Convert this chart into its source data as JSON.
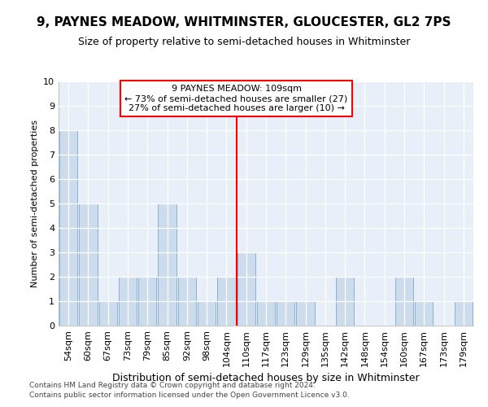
{
  "title": "9, PAYNES MEADOW, WHITMINSTER, GLOUCESTER, GL2 7PS",
  "subtitle": "Size of property relative to semi-detached houses in Whitminster",
  "xlabel": "Distribution of semi-detached houses by size in Whitminster",
  "ylabel": "Number of semi-detached properties",
  "footnote1": "Contains HM Land Registry data © Crown copyright and database right 2024.",
  "footnote2": "Contains public sector information licensed under the Open Government Licence v3.0.",
  "categories": [
    "54sqm",
    "60sqm",
    "67sqm",
    "73sqm",
    "79sqm",
    "85sqm",
    "92sqm",
    "98sqm",
    "104sqm",
    "110sqm",
    "117sqm",
    "123sqm",
    "129sqm",
    "135sqm",
    "142sqm",
    "148sqm",
    "154sqm",
    "160sqm",
    "167sqm",
    "173sqm",
    "179sqm"
  ],
  "values": [
    8,
    5,
    1,
    2,
    2,
    5,
    2,
    1,
    2,
    3,
    1,
    1,
    1,
    0,
    2,
    0,
    0,
    2,
    1,
    0,
    1
  ],
  "bar_color": "#ccdcec",
  "bar_edge_color": "#7aaad0",
  "bar_linewidth": 0.6,
  "vline_color": "red",
  "annotation_line1": "9 PAYNES MEADOW: 109sqm",
  "annotation_line2": "← 73% of semi-detached houses are smaller (27)",
  "annotation_line3": "27% of semi-detached houses are larger (10) →",
  "annotation_box_color": "white",
  "annotation_box_edgecolor": "red",
  "ylim": [
    0,
    10
  ],
  "yticks": [
    0,
    1,
    2,
    3,
    4,
    5,
    6,
    7,
    8,
    9,
    10
  ],
  "background_color": "#e8eff8",
  "grid_color": "white",
  "title_fontsize": 11,
  "subtitle_fontsize": 9,
  "xlabel_fontsize": 9,
  "ylabel_fontsize": 8,
  "tick_fontsize": 8,
  "footnote_fontsize": 6.5,
  "annot_fontsize": 8
}
